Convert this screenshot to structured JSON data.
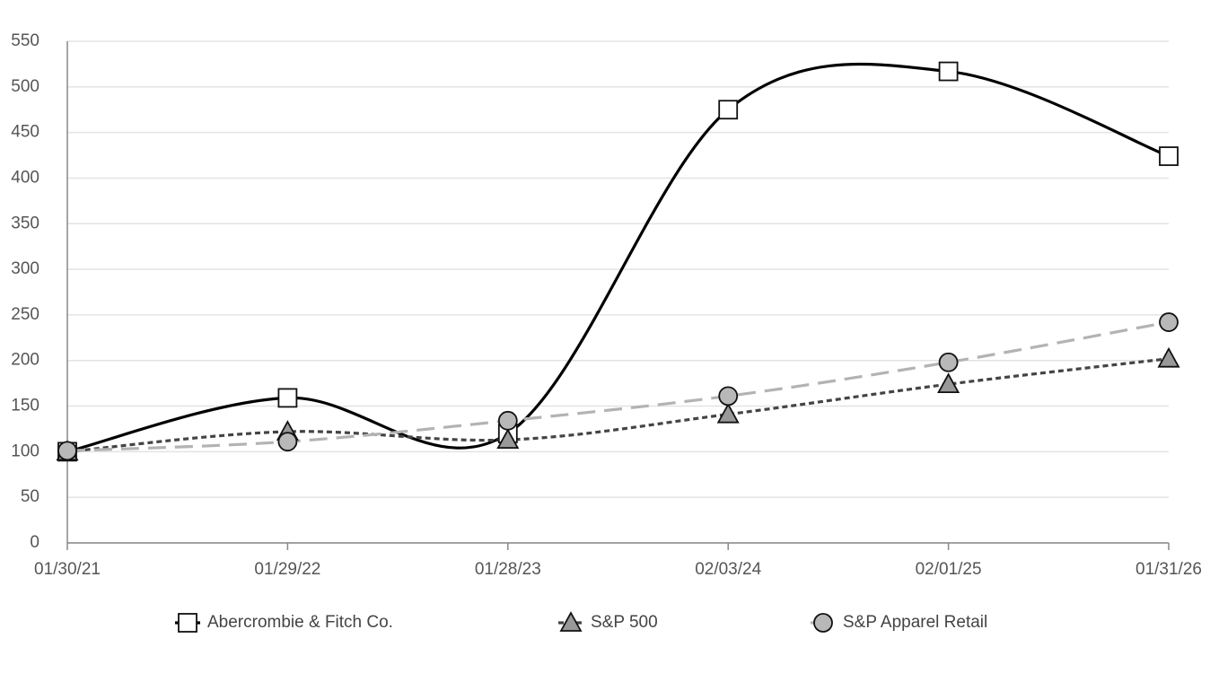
{
  "chart_data": {
    "type": "line",
    "categories": [
      "01/30/21",
      "01/29/22",
      "01/28/23",
      "02/03/24",
      "02/01/25",
      "01/31/26"
    ],
    "series": [
      {
        "name": "Abercrombie & Fitch Co.",
        "color": "#000000",
        "marker": "square",
        "marker_fill": "#ffffff",
        "line_style": "solid",
        "values": [
          100,
          159,
          120,
          475,
          517,
          424
        ]
      },
      {
        "name": "S&P 500",
        "color": "#444444",
        "marker": "triangle",
        "marker_fill": "#999999",
        "line_style": "dotted",
        "values": [
          100,
          122,
          113,
          141,
          174,
          202
        ]
      },
      {
        "name": "S&P Apparel Retail",
        "color": "#b3b3b3",
        "marker": "circle",
        "marker_fill": "#b8b8b8",
        "line_style": "dashed",
        "values": [
          101,
          111,
          134,
          161,
          198,
          242
        ]
      }
    ],
    "ylim": [
      0,
      550
    ],
    "yticks": [
      0,
      50,
      100,
      150,
      200,
      250,
      300,
      350,
      400,
      450,
      500,
      550
    ],
    "grid": true,
    "smooth": true,
    "legend": "bottom"
  }
}
